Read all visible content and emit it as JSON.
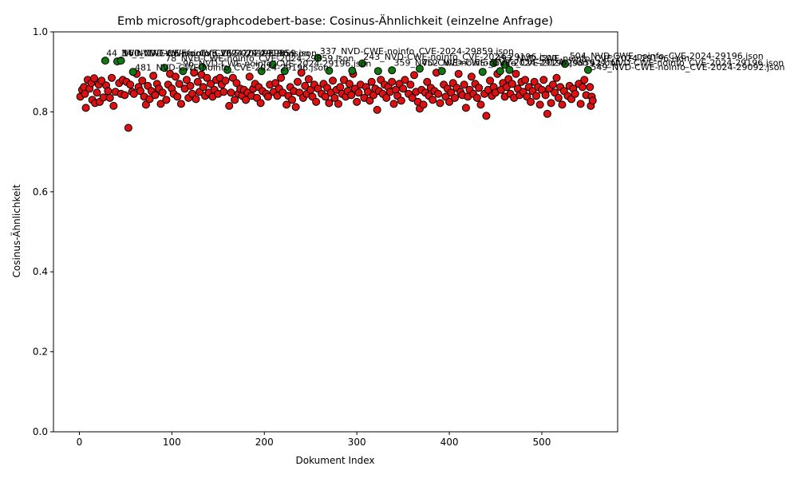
{
  "chart_data": {
    "type": "scatter",
    "title": "Emb microsoft/graphcodebert-base: Cosinus-Ähnlichkeit (einzelne Anfrage)",
    "xlabel": "Dokument Index",
    "ylabel": "Cosinus-Ähnlichkeit",
    "xlim": [
      -28,
      582
    ],
    "ylim": [
      0.0,
      1.0
    ],
    "xticks": [
      0,
      100,
      200,
      300,
      400,
      500
    ],
    "yticks": [
      0.0,
      0.2,
      0.4,
      0.6,
      0.8,
      1.0
    ],
    "grid": false,
    "colors": {
      "normal": "#dd1111",
      "highlight": "#117711",
      "edge": "#000000"
    },
    "series": [
      {
        "values": [
          [
            1,
            0.838
          ],
          [
            3,
            0.855
          ],
          [
            5,
            0.862
          ],
          [
            6,
            0.845
          ],
          [
            7,
            0.81
          ],
          [
            9,
            0.88
          ],
          [
            11,
            0.858
          ],
          [
            13,
            0.872
          ],
          [
            14,
            0.83
          ],
          [
            16,
            0.884
          ],
          [
            17,
            0.822
          ],
          [
            19,
            0.848
          ],
          [
            21,
            0.868
          ],
          [
            22,
            0.825
          ],
          [
            24,
            0.878
          ],
          [
            26,
            0.836
          ],
          [
            29,
            0.866
          ],
          [
            31,
            0.852
          ],
          [
            33,
            0.835
          ],
          [
            35,
            0.885
          ],
          [
            37,
            0.815
          ],
          [
            39,
            0.85
          ],
          [
            43,
            0.872
          ],
          [
            45,
            0.845
          ],
          [
            47,
            0.88
          ],
          [
            49,
            0.842
          ],
          [
            51,
            0.875
          ],
          [
            53,
            0.76
          ],
          [
            55,
            0.868
          ],
          [
            57,
            0.85
          ],
          [
            59,
            0.845
          ],
          [
            62,
            0.895
          ],
          [
            64,
            0.862
          ],
          [
            66,
            0.852
          ],
          [
            68,
            0.878
          ],
          [
            70,
            0.838
          ],
          [
            72,
            0.818
          ],
          [
            74,
            0.865
          ],
          [
            76,
            0.832
          ],
          [
            78,
            0.852
          ],
          [
            80,
            0.89
          ],
          [
            82,
            0.842
          ],
          [
            84,
            0.87
          ],
          [
            86,
            0.858
          ],
          [
            88,
            0.82
          ],
          [
            90,
            0.848
          ],
          [
            94,
            0.83
          ],
          [
            96,
            0.868
          ],
          [
            98,
            0.895
          ],
          [
            100,
            0.858
          ],
          [
            102,
            0.845
          ],
          [
            104,
            0.888
          ],
          [
            106,
            0.838
          ],
          [
            108,
            0.87
          ],
          [
            110,
            0.82
          ],
          [
            114,
            0.858
          ],
          [
            116,
            0.88
          ],
          [
            118,
            0.835
          ],
          [
            120,
            0.865
          ],
          [
            122,
            0.845
          ],
          [
            124,
            0.898
          ],
          [
            126,
            0.832
          ],
          [
            128,
            0.875
          ],
          [
            130,
            0.85
          ],
          [
            132,
            0.893
          ],
          [
            134,
            0.862
          ],
          [
            136,
            0.84
          ],
          [
            138,
            0.885
          ],
          [
            140,
            0.848
          ],
          [
            142,
            0.87
          ],
          [
            144,
            0.838
          ],
          [
            146,
            0.855
          ],
          [
            148,
            0.88
          ],
          [
            150,
            0.845
          ],
          [
            152,
            0.885
          ],
          [
            154,
            0.868
          ],
          [
            156,
            0.85
          ],
          [
            158,
            0.878
          ],
          [
            162,
            0.815
          ],
          [
            164,
            0.848
          ],
          [
            166,
            0.885
          ],
          [
            168,
            0.83
          ],
          [
            170,
            0.872
          ],
          [
            172,
            0.845
          ],
          [
            174,
            0.858
          ],
          [
            176,
            0.84
          ],
          [
            178,
            0.855
          ],
          [
            180,
            0.83
          ],
          [
            182,
            0.848
          ],
          [
            184,
            0.888
          ],
          [
            186,
            0.84
          ],
          [
            188,
            0.858
          ],
          [
            190,
            0.87
          ],
          [
            192,
            0.835
          ],
          [
            194,
            0.862
          ],
          [
            196,
            0.822
          ],
          [
            198,
            0.852
          ],
          [
            202,
            0.845
          ],
          [
            204,
            0.838
          ],
          [
            206,
            0.868
          ],
          [
            210,
            0.85
          ],
          [
            212,
            0.872
          ],
          [
            214,
            0.84
          ],
          [
            216,
            0.858
          ],
          [
            218,
            0.885
          ],
          [
            220,
            0.848
          ],
          [
            224,
            0.818
          ],
          [
            226,
            0.84
          ],
          [
            228,
            0.862
          ],
          [
            230,
            0.83
          ],
          [
            232,
            0.852
          ],
          [
            234,
            0.812
          ],
          [
            236,
            0.875
          ],
          [
            238,
            0.848
          ],
          [
            240,
            0.898
          ],
          [
            242,
            0.835
          ],
          [
            244,
            0.865
          ],
          [
            246,
            0.845
          ],
          [
            248,
            0.882
          ],
          [
            250,
            0.855
          ],
          [
            252,
            0.838
          ],
          [
            254,
            0.868
          ],
          [
            256,
            0.825
          ],
          [
            258,
            0.858
          ],
          [
            262,
            0.845
          ],
          [
            264,
            0.87
          ],
          [
            266,
            0.838
          ],
          [
            268,
            0.86
          ],
          [
            270,
            0.822
          ],
          [
            272,
            0.848
          ],
          [
            274,
            0.878
          ],
          [
            276,
            0.835
          ],
          [
            278,
            0.855
          ],
          [
            280,
            0.82
          ],
          [
            282,
            0.862
          ],
          [
            284,
            0.845
          ],
          [
            286,
            0.88
          ],
          [
            288,
            0.838
          ],
          [
            290,
            0.852
          ],
          [
            292,
            0.87
          ],
          [
            294,
            0.842
          ],
          [
            296,
            0.895
          ],
          [
            298,
            0.858
          ],
          [
            300,
            0.825
          ],
          [
            302,
            0.848
          ],
          [
            304,
            0.868
          ],
          [
            308,
            0.835
          ],
          [
            310,
            0.862
          ],
          [
            312,
            0.85
          ],
          [
            314,
            0.828
          ],
          [
            316,
            0.875
          ],
          [
            318,
            0.842
          ],
          [
            320,
            0.858
          ],
          [
            322,
            0.805
          ],
          [
            324,
            0.852
          ],
          [
            326,
            0.88
          ],
          [
            328,
            0.845
          ],
          [
            330,
            0.868
          ],
          [
            332,
            0.835
          ],
          [
            334,
            0.862
          ],
          [
            336,
            0.85
          ],
          [
            338,
            0.875
          ],
          [
            340,
            0.82
          ],
          [
            342,
            0.855
          ],
          [
            344,
            0.84
          ],
          [
            346,
            0.87
          ],
          [
            348,
            0.828
          ],
          [
            350,
            0.858
          ],
          [
            352,
            0.88
          ],
          [
            356,
            0.845
          ],
          [
            358,
            0.868
          ],
          [
            360,
            0.835
          ],
          [
            362,
            0.892
          ],
          [
            364,
            0.85
          ],
          [
            366,
            0.825
          ],
          [
            368,
            0.808
          ],
          [
            370,
            0.855
          ],
          [
            372,
            0.818
          ],
          [
            374,
            0.848
          ],
          [
            376,
            0.875
          ],
          [
            378,
            0.84
          ],
          [
            380,
            0.86
          ],
          [
            382,
            0.83
          ],
          [
            384,
            0.852
          ],
          [
            386,
            0.898
          ],
          [
            388,
            0.845
          ],
          [
            390,
            0.822
          ],
          [
            394,
            0.868
          ],
          [
            396,
            0.838
          ],
          [
            398,
            0.858
          ],
          [
            400,
            0.825
          ],
          [
            402,
            0.848
          ],
          [
            404,
            0.872
          ],
          [
            406,
            0.835
          ],
          [
            408,
            0.86
          ],
          [
            410,
            0.895
          ],
          [
            412,
            0.85
          ],
          [
            414,
            0.842
          ],
          [
            416,
            0.868
          ],
          [
            418,
            0.81
          ],
          [
            420,
            0.838
          ],
          [
            422,
            0.855
          ],
          [
            424,
            0.888
          ],
          [
            426,
            0.845
          ],
          [
            428,
            0.87
          ],
          [
            430,
            0.835
          ],
          [
            432,
            0.86
          ],
          [
            434,
            0.818
          ],
          [
            438,
            0.845
          ],
          [
            440,
            0.79
          ],
          [
            442,
            0.855
          ],
          [
            444,
            0.878
          ],
          [
            446,
            0.84
          ],
          [
            448,
            0.862
          ],
          [
            450,
            0.848
          ],
          [
            452,
            0.895
          ],
          [
            456,
            0.855
          ],
          [
            458,
            0.872
          ],
          [
            460,
            0.838
          ],
          [
            462,
            0.862
          ],
          [
            464,
            0.882
          ],
          [
            466,
            0.845
          ],
          [
            468,
            0.87
          ],
          [
            470,
            0.835
          ],
          [
            472,
            0.895
          ],
          [
            474,
            0.858
          ],
          [
            476,
            0.842
          ],
          [
            478,
            0.875
          ],
          [
            480,
            0.85
          ],
          [
            482,
            0.88
          ],
          [
            484,
            0.838
          ],
          [
            486,
            0.862
          ],
          [
            488,
            0.825
          ],
          [
            490,
            0.852
          ],
          [
            492,
            0.875
          ],
          [
            494,
            0.84
          ],
          [
            496,
            0.862
          ],
          [
            498,
            0.818
          ],
          [
            500,
            0.855
          ],
          [
            502,
            0.88
          ],
          [
            504,
            0.842
          ],
          [
            506,
            0.795
          ],
          [
            508,
            0.858
          ],
          [
            510,
            0.822
          ],
          [
            512,
            0.868
          ],
          [
            514,
            0.848
          ],
          [
            516,
            0.885
          ],
          [
            518,
            0.835
          ],
          [
            520,
            0.862
          ],
          [
            522,
            0.818
          ],
          [
            524,
            0.852
          ],
          [
            528,
            0.84
          ],
          [
            530,
            0.865
          ],
          [
            532,
            0.832
          ],
          [
            534,
            0.858
          ],
          [
            536,
            0.845
          ],
          [
            540,
            0.87
          ],
          [
            542,
            0.82
          ],
          [
            544,
            0.862
          ],
          [
            546,
            0.88
          ],
          [
            548,
            0.842
          ],
          [
            552,
            0.862
          ],
          [
            553,
            0.815
          ],
          [
            554,
            0.838
          ],
          [
            555,
            0.828
          ]
        ]
      },
      {
        "values": [
          [
            28,
            0.928
          ],
          [
            41,
            0.926
          ],
          [
            45,
            0.928
          ],
          [
            58,
            0.9
          ],
          [
            92,
            0.91
          ],
          [
            112,
            0.902
          ],
          [
            133,
            0.912
          ],
          [
            160,
            0.905
          ],
          [
            197,
            0.902
          ],
          [
            209,
            0.918
          ],
          [
            222,
            0.902
          ],
          [
            258,
            0.935
          ],
          [
            270,
            0.903
          ],
          [
            295,
            0.903
          ],
          [
            306,
            0.921
          ],
          [
            323,
            0.902
          ],
          [
            338,
            0.904
          ],
          [
            368,
            0.908
          ],
          [
            392,
            0.902
          ],
          [
            436,
            0.9
          ],
          [
            448,
            0.922
          ],
          [
            455,
            0.902
          ],
          [
            460,
            0.918
          ],
          [
            465,
            0.905
          ],
          [
            525,
            0.92
          ],
          [
            550,
            0.905
          ]
        ]
      }
    ],
    "annotations": [
      {
        "text": "44_NVD-CWE-noinfo_CVE-2024-29196.json",
        "x": 29,
        "y": 0.939
      },
      {
        "text": "34_NVD-CWE-noinfo_CVE-2024-29196.json",
        "x": 45,
        "y": 0.939
      },
      {
        "text": "160_NVD-CWE-noinfo_CVE-2024-29859.json",
        "x": 47,
        "y": 0.939
      },
      {
        "text": "481_NVD-CWE-noinfo_CVE-2024-29196.json",
        "x": 60,
        "y": 0.903
      },
      {
        "text": "78_NVD-CWE-noinfo_CVE-2024-29859.json",
        "x": 93,
        "y": 0.926
      },
      {
        "text": "96_NVD-CWE-noinfo_CVE-2024-29196.json",
        "x": 112,
        "y": 0.913
      },
      {
        "text": "337_NVD-CWE-noinfo_CVE-2024-29859.json",
        "x": 260,
        "y": 0.944
      },
      {
        "text": "243_NVD-CWE-noinfo_CVE-2024-29196.json",
        "x": 307,
        "y": 0.93
      },
      {
        "text": "359_NVD-CWE-noinfo_CVE-2024-29196.json",
        "x": 340,
        "y": 0.915
      },
      {
        "text": "452_NVD-CWE-noinfo_CVE-2024-29859.json",
        "x": 370,
        "y": 0.915
      },
      {
        "text": "493_NVD-CWE-noinfo_CVE-2024-29196.json",
        "x": 450,
        "y": 0.926
      },
      {
        "text": "504_NVD-CWE-noinfo_CVE-2024-29196.json",
        "x": 530,
        "y": 0.932
      },
      {
        "text": "527_NVD-CWE-noinfo_CVE-2024-29196.json",
        "x": 552,
        "y": 0.915
      },
      {
        "text": "549_NVD-CWE-noinfo_CVE-2024-29092.json",
        "x": 553,
        "y": 0.904
      }
    ]
  }
}
